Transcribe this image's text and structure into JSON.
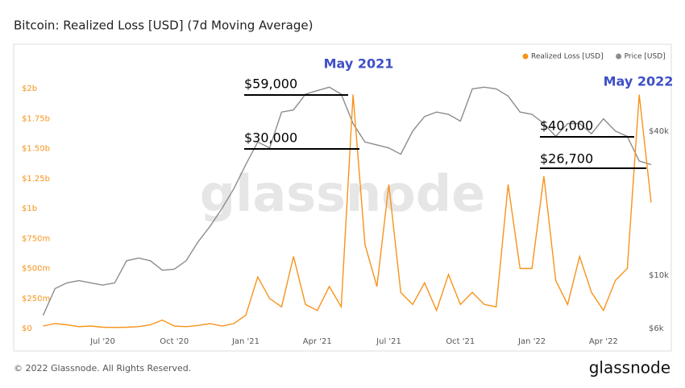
{
  "chart_data": {
    "type": "line",
    "title": "Bitcoin: Realized Loss [USD] (7d Moving Average)",
    "watermark": "glassnode",
    "footer": "© 2022 Glassnode. All Rights Reserved.",
    "brand": "glassnode",
    "categories": [
      null,
      null,
      null,
      null,
      null,
      "Jul '20",
      null,
      null,
      null,
      null,
      null,
      "Oct '20",
      null,
      null,
      null,
      null,
      null,
      "Jan '21",
      null,
      null,
      null,
      null,
      null,
      "Apr '21",
      null,
      null,
      null,
      null,
      null,
      "Jul '21",
      null,
      null,
      null,
      null,
      null,
      "Oct '21",
      null,
      null,
      null,
      null,
      null,
      "Jan '22",
      null,
      null,
      null,
      null,
      null,
      "Apr '22",
      null,
      null,
      null,
      null
    ],
    "series": [
      {
        "name": "Realized Loss [USD]",
        "color": "#f7931a",
        "axis": "y",
        "values": [
          20,
          40,
          30,
          15,
          20,
          10,
          8,
          10,
          15,
          30,
          70,
          20,
          15,
          25,
          40,
          20,
          40,
          110,
          430,
          250,
          180,
          600,
          200,
          150,
          350,
          180,
          1950,
          700,
          350,
          1200,
          300,
          200,
          380,
          150,
          450,
          200,
          300,
          200,
          180,
          1200,
          500,
          500,
          1270,
          400,
          200,
          600,
          300,
          150,
          400,
          500,
          1950,
          1050
        ]
      },
      {
        "name": "Price [USD]",
        "color": "#8c8c8c",
        "axis": "y2",
        "values": [
          6.8,
          8.8,
          9.3,
          9.5,
          9.3,
          9.1,
          9.3,
          11.5,
          11.8,
          11.5,
          10.5,
          10.6,
          11.5,
          13.8,
          16,
          19,
          23,
          29,
          36,
          34,
          48,
          49,
          57,
          59,
          61,
          57,
          43,
          36,
          35,
          34,
          32,
          40,
          46,
          48,
          47,
          44,
          60,
          61,
          60,
          56,
          48,
          47,
          43,
          38,
          43,
          43,
          39,
          45,
          40,
          38,
          30,
          29
        ]
      }
    ],
    "ylim": [
      0,
      2350
    ],
    "yticks": [
      {
        "value": 0,
        "label": "$0"
      },
      {
        "value": 250,
        "label": "$250m"
      },
      {
        "value": 500,
        "label": "$500m"
      },
      {
        "value": 750,
        "label": "$750m"
      },
      {
        "value": 1000,
        "label": "$1b"
      },
      {
        "value": 1250,
        "label": "$1.25b"
      },
      {
        "value": 1500,
        "label": "$1.50b"
      },
      {
        "value": 1750,
        "label": "$1.75b"
      },
      {
        "value": 2000,
        "label": "$2b"
      }
    ],
    "y2lim": [
      6,
      90
    ],
    "y2log": true,
    "y2ticks": [
      {
        "value": 6,
        "label": "$6k"
      },
      {
        "value": 10,
        "label": "$10k"
      },
      {
        "value": 40,
        "label": "$40k"
      }
    ],
    "annotations": [
      {
        "text": "May 2021",
        "color": "#3f4fc6"
      },
      {
        "text": "May 2022",
        "color": "#3f4fc6"
      },
      {
        "text": "$59,000",
        "color": "#000000"
      },
      {
        "text": "$30,000",
        "color": "#000000"
      },
      {
        "text": "$40,000",
        "color": "#000000"
      },
      {
        "text": "$26,700",
        "color": "#000000"
      }
    ]
  }
}
